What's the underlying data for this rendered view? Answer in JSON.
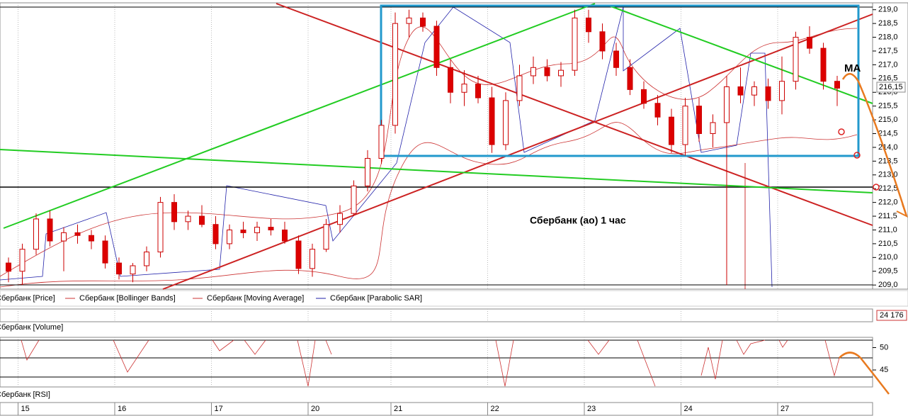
{
  "chart_data": {
    "type": "candlestick",
    "annotation": "Сбербанк (ао)   1 час",
    "ma_label": "MA",
    "last_price_label": "216,15",
    "volume_value_label": "24 176",
    "legend": [
      "Сбербанк [Price]",
      "Сбербанк [Bollinger Bands]",
      "Сбербанк [Moving Average]",
      "Сбербанк [Parabolic SAR]"
    ],
    "volume_title": "Сбербанк [Volume]",
    "rsi_title": "Сбербанк [RSI]",
    "rsi_ylim": [
      41.2,
      52.3
    ],
    "rsi_yticks": [
      50,
      45
    ],
    "ylim": [
      208.85,
      219.25
    ],
    "yticks": [
      {
        "value": 219,
        "label": "219,0"
      },
      {
        "value": 218.5,
        "label": "218,5"
      },
      {
        "value": 218,
        "label": "218,0"
      },
      {
        "value": 217.5,
        "label": "217,5"
      },
      {
        "value": 217,
        "label": "217,0"
      },
      {
        "value": 216.5,
        "label": "216,5"
      },
      {
        "value": 216,
        "label": "216,0"
      },
      {
        "value": 215.5,
        "label": "215,5"
      },
      {
        "value": 215,
        "label": "215,0"
      },
      {
        "value": 214.5,
        "label": "214,5"
      },
      {
        "value": 214,
        "label": "214,0"
      },
      {
        "value": 213.5,
        "label": "213,5"
      },
      {
        "value": 213,
        "label": "213,0"
      },
      {
        "value": 212.5,
        "label": "212,5"
      },
      {
        "value": 212,
        "label": "212,0"
      },
      {
        "value": 211.5,
        "label": "211,5"
      },
      {
        "value": 211,
        "label": "211,0"
      },
      {
        "value": 210.5,
        "label": "210,5"
      },
      {
        "value": 210,
        "label": "210,0"
      },
      {
        "value": 209.5,
        "label": "209,5"
      },
      {
        "value": 209,
        "label": "209,0"
      }
    ],
    "x": [
      null,
      "15",
      null,
      null,
      null,
      null,
      null,
      null,
      "16",
      null,
      null,
      null,
      null,
      null,
      null,
      "17",
      null,
      null,
      null,
      null,
      null,
      null,
      "20",
      null,
      null,
      null,
      null,
      null,
      "21",
      null,
      null,
      null,
      null,
      null,
      null,
      "22",
      null,
      null,
      null,
      null,
      null,
      null,
      "23",
      null,
      null,
      null,
      null,
      null,
      null,
      "24",
      null,
      null,
      null,
      null,
      null,
      null,
      "27",
      null,
      null,
      null,
      null
    ],
    "candles": [
      [
        209.8,
        210.0,
        209.1,
        209.5
      ],
      [
        209.5,
        210.5,
        209.0,
        210.3
      ],
      [
        210.3,
        211.6,
        210.1,
        211.4
      ],
      [
        211.4,
        211.7,
        210.4,
        210.6
      ],
      [
        210.6,
        211.1,
        209.5,
        210.9
      ],
      [
        210.9,
        211.2,
        210.5,
        210.8
      ],
      [
        210.8,
        211.0,
        210.3,
        210.6
      ],
      [
        210.6,
        210.8,
        209.6,
        209.8
      ],
      [
        209.8,
        210.0,
        209.2,
        209.4
      ],
      [
        209.4,
        209.8,
        209.1,
        209.7
      ],
      [
        209.7,
        210.4,
        209.5,
        210.2
      ],
      [
        210.2,
        212.2,
        210.0,
        212.0
      ],
      [
        212.0,
        212.3,
        211.0,
        211.3
      ],
      [
        211.3,
        211.7,
        211.0,
        211.5
      ],
      [
        211.5,
        211.9,
        211.1,
        211.2
      ],
      [
        211.2,
        211.5,
        210.3,
        210.5
      ],
      [
        210.5,
        211.2,
        210.3,
        211.0
      ],
      [
        211.0,
        211.3,
        210.7,
        210.9
      ],
      [
        210.9,
        211.3,
        210.6,
        211.1
      ],
      [
        211.1,
        211.4,
        210.8,
        211.0
      ],
      [
        211.0,
        211.3,
        210.5,
        210.6
      ],
      [
        210.6,
        210.8,
        209.4,
        209.6
      ],
      [
        209.6,
        210.5,
        209.3,
        210.3
      ],
      [
        210.3,
        211.4,
        210.2,
        211.2
      ],
      [
        211.2,
        211.9,
        210.9,
        211.6
      ],
      [
        211.6,
        212.8,
        211.5,
        212.6
      ],
      [
        212.6,
        213.9,
        212.4,
        213.6
      ],
      [
        213.6,
        215.0,
        213.4,
        214.8
      ],
      [
        214.8,
        218.9,
        214.5,
        218.5
      ],
      [
        218.5,
        219.0,
        218.0,
        218.7
      ],
      [
        218.7,
        218.9,
        218.2,
        218.4
      ],
      [
        218.4,
        218.6,
        216.6,
        216.9
      ],
      [
        216.9,
        217.2,
        215.6,
        216.0
      ],
      [
        216.0,
        216.8,
        215.5,
        216.3
      ],
      [
        216.3,
        216.6,
        215.6,
        215.8
      ],
      [
        215.8,
        216.2,
        213.8,
        214.1
      ],
      [
        214.1,
        216.0,
        213.9,
        215.7
      ],
      [
        215.7,
        217.0,
        215.5,
        216.6
      ],
      [
        216.6,
        217.3,
        216.3,
        216.9
      ],
      [
        216.9,
        217.2,
        216.4,
        216.6
      ],
      [
        216.6,
        217.1,
        216.2,
        216.8
      ],
      [
        216.8,
        219.0,
        216.6,
        218.7
      ],
      [
        218.7,
        219.0,
        217.8,
        218.2
      ],
      [
        218.2,
        218.5,
        217.2,
        217.5
      ],
      [
        217.5,
        217.8,
        216.6,
        216.9
      ],
      [
        216.9,
        217.2,
        215.9,
        216.1
      ],
      [
        216.1,
        216.4,
        215.4,
        215.6
      ],
      [
        215.6,
        215.9,
        214.8,
        215.1
      ],
      [
        215.1,
        215.4,
        213.8,
        214.1
      ],
      [
        214.1,
        215.8,
        213.7,
        215.5
      ],
      [
        215.5,
        215.8,
        214.2,
        214.5
      ],
      [
        214.5,
        215.2,
        214.0,
        214.9
      ],
      [
        214.9,
        216.6,
        209.0,
        216.2
      ],
      [
        216.2,
        216.9,
        215.6,
        215.9
      ],
      [
        215.9,
        216.4,
        215.5,
        216.2
      ],
      [
        216.2,
        216.5,
        215.4,
        215.7
      ],
      [
        215.7,
        217.3,
        215.2,
        216.4
      ],
      [
        216.4,
        218.2,
        216.1,
        218.0
      ],
      [
        218.0,
        218.4,
        217.4,
        217.6
      ],
      [
        217.6,
        217.8,
        216.1,
        216.4
      ],
      [
        216.4,
        216.6,
        215.5,
        216.15
      ]
    ]
  }
}
